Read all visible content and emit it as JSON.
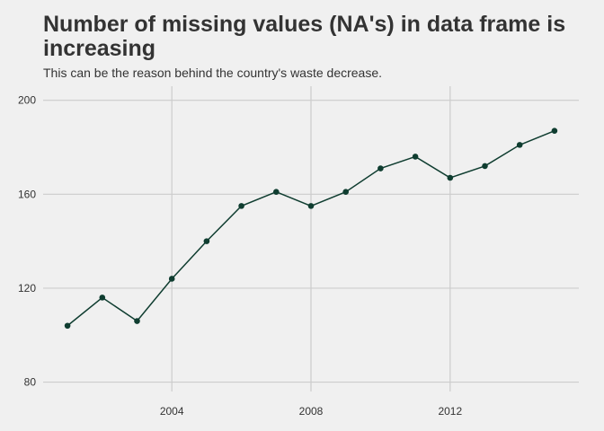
{
  "chart_data": {
    "type": "line",
    "title": "Number of missing values (NA's) in data frame is increasing",
    "subtitle": "This can be the reason behind the country's waste decrease.",
    "xlabel": "",
    "ylabel": "",
    "x": [
      2001,
      2002,
      2003,
      2004,
      2005,
      2006,
      2007,
      2008,
      2009,
      2010,
      2011,
      2012,
      2013,
      2014,
      2015
    ],
    "series": [
      {
        "values": [
          104,
          116,
          106,
          124,
          140,
          155,
          161,
          155,
          161,
          171,
          176,
          167,
          172,
          181,
          187
        ]
      }
    ],
    "xlim": [
      2000.3,
      2015.7
    ],
    "ylim": [
      76,
      206
    ],
    "x_ticks": [
      2004,
      2008,
      2012
    ],
    "y_ticks": [
      80,
      120,
      160,
      200
    ],
    "x_tick_labels": [
      "2004",
      "2008",
      "2012"
    ],
    "y_tick_labels": [
      "80",
      "120",
      "160",
      "200"
    ],
    "grid": true,
    "line_color": "#0f3d30",
    "point_color": "#0f3d30",
    "grid_color": "#cccccc",
    "background_color": "#f0f0f0"
  }
}
